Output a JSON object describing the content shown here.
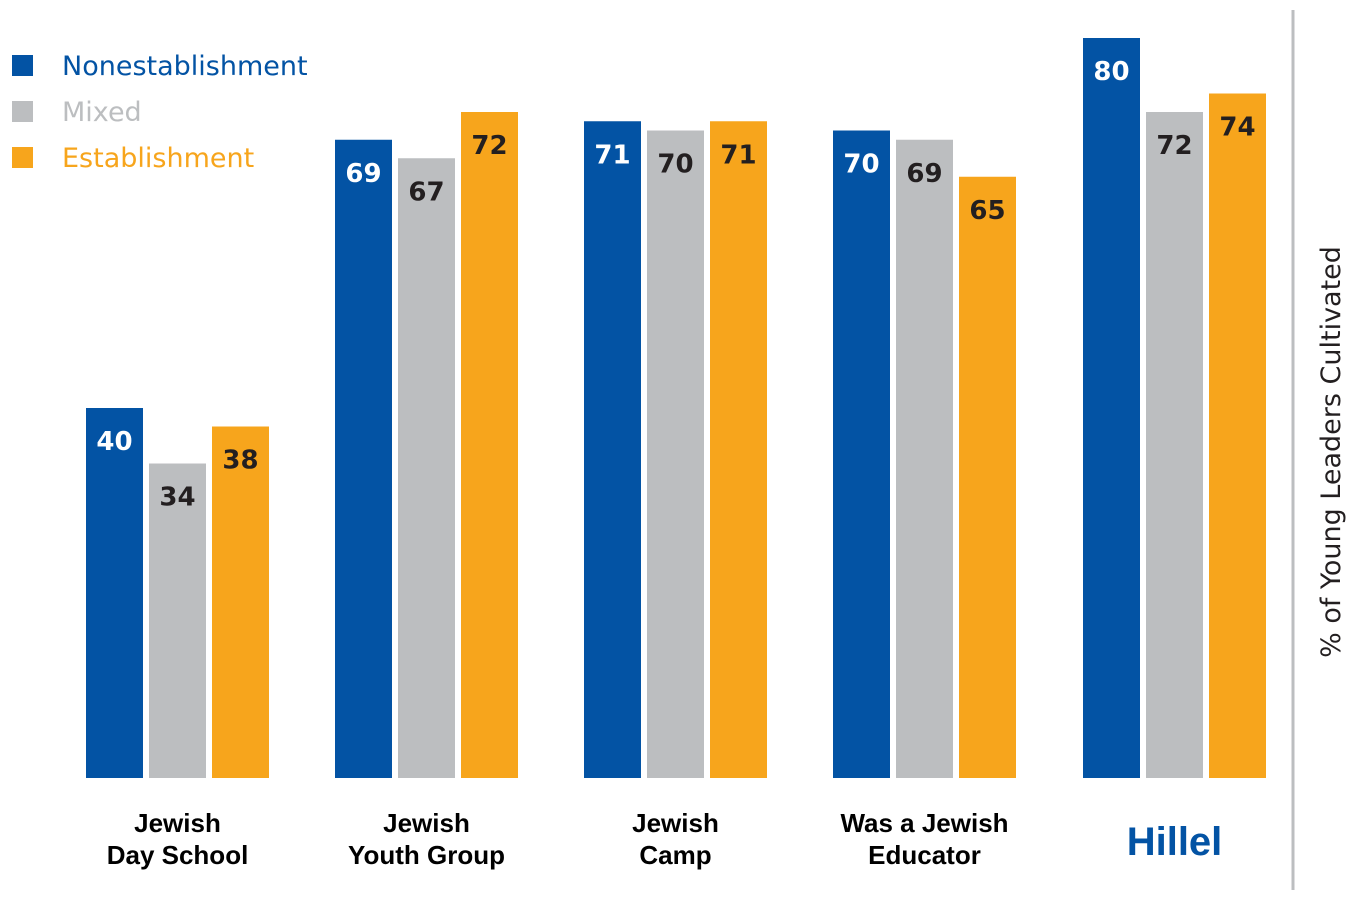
{
  "chart_data": {
    "type": "bar",
    "categories": [
      [
        "Jewish",
        "Day School"
      ],
      [
        "Jewish",
        "Youth Group"
      ],
      [
        "Jewish",
        "Camp"
      ],
      [
        "Was a Jewish",
        "Educator"
      ],
      [
        "Hillel"
      ]
    ],
    "series": [
      {
        "name": "Nonestablishment",
        "color": "#0353a4",
        "values": [
          40,
          69,
          71,
          70,
          80
        ]
      },
      {
        "name": "Mixed",
        "color": "#bcbec0",
        "values": [
          34,
          67,
          70,
          69,
          72
        ]
      },
      {
        "name": "Establishment",
        "color": "#f7a51c",
        "values": [
          38,
          72,
          71,
          65,
          74
        ]
      }
    ],
    "value_label_colors": {
      "Nonestablishment": "#ffffff",
      "Mixed": "#231f20",
      "Establishment": "#231f20"
    },
    "highlight_category": {
      "label": "Hillel",
      "color": "#0353a4"
    },
    "ylabel": "% of Young Leaders Cultivated",
    "ylim": [
      0,
      80
    ],
    "grid": false,
    "legend_position": "top-left"
  }
}
